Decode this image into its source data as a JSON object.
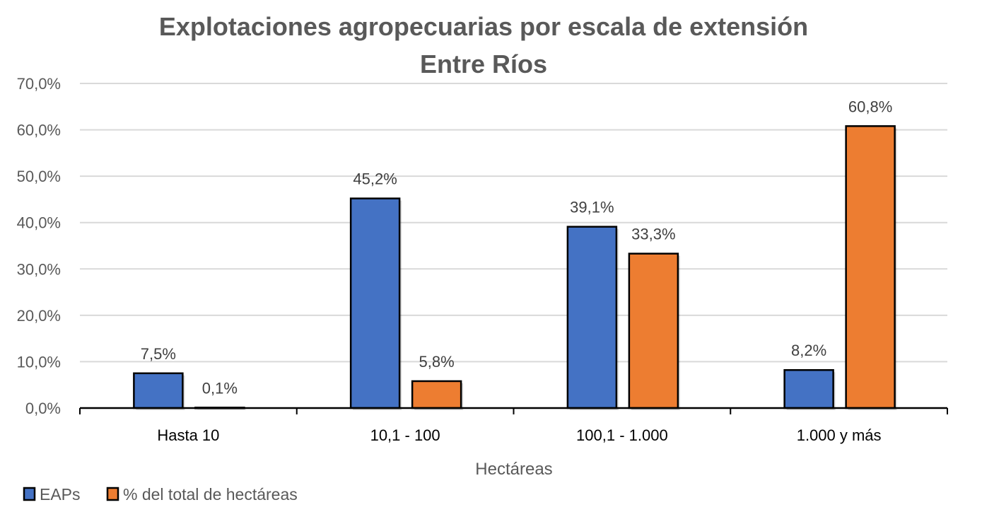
{
  "chart_data": {
    "type": "bar",
    "title": "Explotaciones agropecuarias por escala de extensión",
    "subtitle": "Entre Ríos",
    "xlabel": "Hectáreas",
    "ylabel": "",
    "ylim": [
      0,
      70
    ],
    "yticks": [
      "0,0%",
      "10,0%",
      "20,0%",
      "30,0%",
      "40,0%",
      "50,0%",
      "60,0%",
      "70,0%"
    ],
    "grid": true,
    "legend_position": "bottom-left",
    "categories": [
      "Hasta 10",
      "10,1 - 100",
      "100,1 - 1.000",
      "1.000 y más"
    ],
    "series": [
      {
        "name": "EAPs",
        "color": "#4472C4",
        "values": [
          7.5,
          45.2,
          39.1,
          8.2
        ],
        "labels": [
          "7,5%",
          "45,2%",
          "39,1%",
          "8,2%"
        ]
      },
      {
        "name": "% del total de hectáreas",
        "color": "#ED7D31",
        "values": [
          0.1,
          5.8,
          33.3,
          60.8
        ],
        "labels": [
          "0,1%",
          "5,8%",
          "33,3%",
          "60,8%"
        ]
      }
    ]
  }
}
